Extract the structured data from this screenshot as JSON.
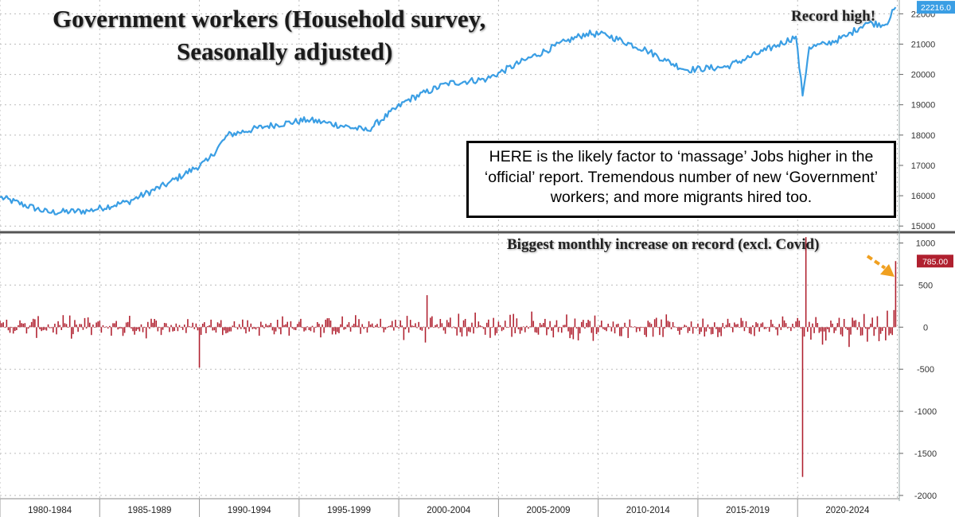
{
  "title_line1": "Government workers (Household survey,",
  "title_line2": "Seasonally adjusted)",
  "annotation_record": "Record high!",
  "annotation_biggest": "Biggest monthly increase on record (excl. Covid)",
  "callout_text": "HERE is the likely factor to ‘massage’ Jobs higher in the ‘official’ report. Tremendous number of new ‘Government’ workers; and more migrants hired too.",
  "colors": {
    "level_line": "#3a9ee4",
    "change_bars": "#b0202f",
    "last_value_badge_top": "#3a9ee4",
    "last_value_badge_bottom": "#b0202f",
    "arrow": "#f0a020"
  },
  "chart_data": [
    {
      "type": "line",
      "series": [
        {
          "values_description_note": "",
          "name": ""
        }
      ],
      "ytick_labels": [
        "15000",
        "16000",
        "17000",
        "18000",
        "19000",
        "20000",
        "21000",
        "22000"
      ],
      "ylim": [
        14900,
        22350
      ],
      "last_value_label": "22216.0",
      "x": [
        "1980-01",
        "1982-06",
        "1984-06",
        "1986-06",
        "1988-06",
        "1990-06",
        "1991-06",
        "1993-06",
        "1995-06",
        "1996-06",
        "1998-06",
        "2000-06",
        "2002-06",
        "2004-06",
        "2006-06",
        "2008-06",
        "2009-06",
        "2010-06",
        "2012-06",
        "2013-06",
        "2014-06",
        "2016-06",
        "2018-06",
        "2019-12",
        "2020-04",
        "2020-08",
        "2021-06",
        "2022-06",
        "2023-06",
        "2024-06",
        "2024-12"
      ],
      "values": [
        15950,
        15450,
        15500,
        15800,
        16400,
        17150,
        18000,
        18300,
        18500,
        18400,
        18150,
        19150,
        19700,
        19850,
        20500,
        21100,
        21350,
        21300,
        20800,
        20450,
        20150,
        20250,
        20800,
        21250,
        19300,
        20900,
        21000,
        21250,
        21700,
        21650,
        22216
      ],
      "grid": true
    },
    {
      "type": "bar",
      "ytick_labels": [
        "1000",
        "500",
        "0",
        "-500",
        "-1000",
        "-1500",
        "-2000"
      ],
      "ylim": [
        -2020,
        1090
      ],
      "last_value_label": "785.00",
      "x_period_labels": [
        "1980-1984",
        "1985-1989",
        "1990-1994",
        "1995-1999",
        "2000-2004",
        "2005-2009",
        "2010-2014",
        "2015-2019",
        "2020-2024"
      ],
      "notable_values": [
        {
          "x": "1990-01",
          "y": -480
        },
        {
          "x": "2001-06",
          "y": 380
        },
        {
          "x": "2020-04",
          "y": -1780
        },
        {
          "x": "2020-06",
          "y": 1070
        },
        {
          "x": "2024-12",
          "y": 785
        }
      ],
      "typical_range": [
        -300,
        300
      ],
      "grid": true
    }
  ]
}
